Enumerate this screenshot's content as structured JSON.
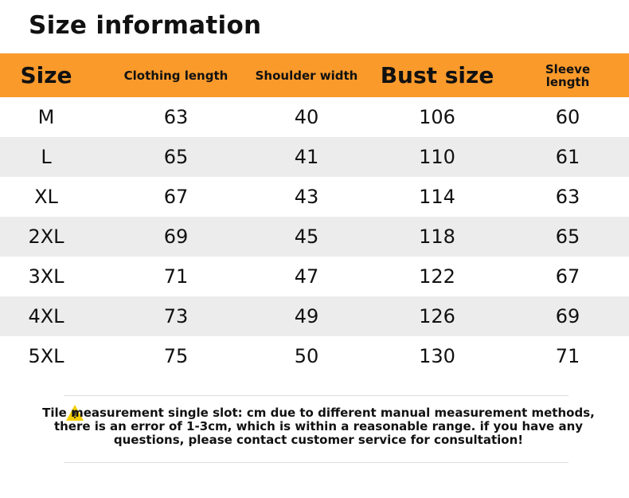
{
  "title": "Size information",
  "table": {
    "header": [
      "Size",
      "Clothing length",
      "Shoulder width",
      "Bust size",
      "Sleeve length"
    ],
    "rows": [
      [
        "M",
        63,
        40,
        106,
        60
      ],
      [
        "L",
        65,
        41,
        110,
        61
      ],
      [
        "XL",
        67,
        43,
        114,
        63
      ],
      [
        "2XL",
        69,
        45,
        118,
        65
      ],
      [
        "3XL",
        71,
        47,
        122,
        67
      ],
      [
        "4XL",
        73,
        49,
        126,
        69
      ],
      [
        "5XL",
        75,
        50,
        130,
        71
      ]
    ]
  },
  "note": "Tile measurement single slot: cm due to different manual measurement methods, there is an error of 1-3cm, which is within a reasonable range. if you have any questions, please contact customer service for consultation!"
}
